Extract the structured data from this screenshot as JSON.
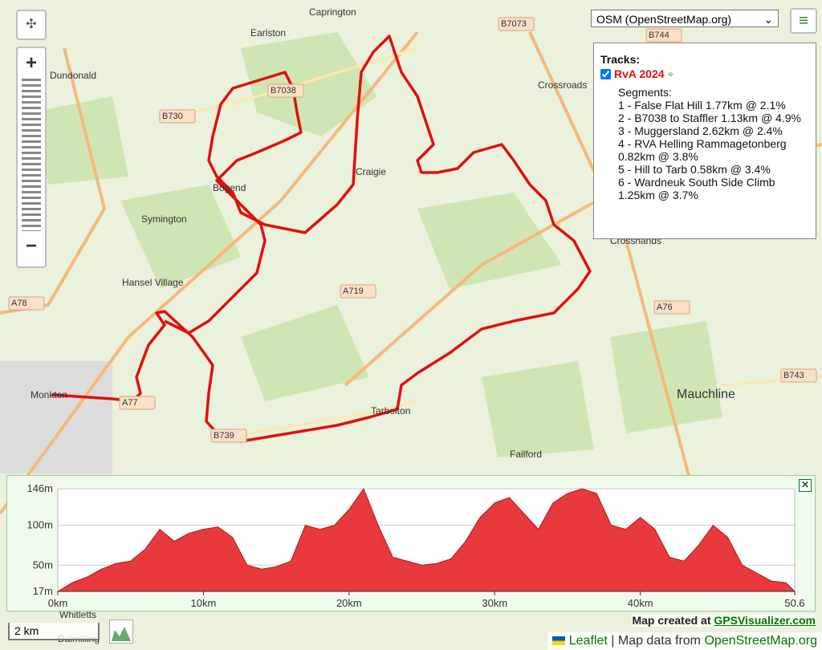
{
  "map": {
    "places": [
      "Caprington",
      "Earlston",
      "Dundonald",
      "B7073",
      "B744",
      "B730",
      "B7038",
      "Crossroads",
      "Craigie",
      "Bogend",
      "Symington",
      "Hansel Village",
      "A78",
      "A719",
      "A76",
      "Crosshands",
      "Mauchline",
      "B743",
      "Monkton",
      "A77",
      "Tarbolton",
      "B739",
      "Failford",
      "Whitletts",
      "Dalmilling"
    ]
  },
  "controls": {
    "layer": "OSM (OpenStreetMap.org)",
    "zoom_in": "+",
    "zoom_out": "−",
    "scale": "2 km"
  },
  "tracks": {
    "title": "Tracks:",
    "track": "RvA 2024",
    "segments_title": "Segments:",
    "segments": [
      "1 - False Flat Hill 1.77km @ 2.1%",
      "2 - B7038 to Staffler 1.13km @ 4.9%",
      "3 - Muggersland 2.62km @ 2.4%",
      "4 - RVA Helling Rammagetonberg 0.82km @ 3.8%",
      "5 - Hill to Tarb 0.58km @ 3.4%",
      "6 - Wardneuk South Side Climb 1.25km @ 3.7%"
    ]
  },
  "footer": {
    "created": "Map created at",
    "created_link": "GPSVisualizer.com",
    "leaflet": "Leaflet",
    "data_from": "| Map data from",
    "data_link": "OpenStreetMap.org"
  },
  "chart_data": {
    "type": "area",
    "color": "#e8393c",
    "x": [
      0,
      1,
      2,
      3,
      4,
      5,
      6,
      7,
      8,
      9,
      10,
      11,
      12,
      13,
      14,
      15,
      16,
      17,
      18,
      19,
      20,
      21,
      22,
      23,
      24,
      25,
      26,
      27,
      28,
      29,
      30,
      31,
      32,
      33,
      34,
      35,
      36,
      37,
      38,
      39,
      40,
      41,
      42,
      43,
      44,
      45,
      46,
      47,
      48,
      49,
      50,
      50.6
    ],
    "values": [
      17,
      28,
      35,
      45,
      52,
      55,
      70,
      95,
      80,
      90,
      95,
      98,
      85,
      50,
      45,
      48,
      55,
      100,
      95,
      100,
      120,
      146,
      100,
      60,
      55,
      50,
      52,
      58,
      80,
      110,
      128,
      135,
      115,
      95,
      128,
      140,
      146,
      140,
      100,
      95,
      110,
      95,
      60,
      55,
      75,
      100,
      85,
      50,
      40,
      30,
      28,
      17
    ],
    "xlim": [
      0,
      50.6
    ],
    "ylim": [
      17,
      146
    ],
    "xticks": [
      {
        "value": 0,
        "label": "0km"
      },
      {
        "value": 10,
        "label": "10km"
      },
      {
        "value": 20,
        "label": "20km"
      },
      {
        "value": 30,
        "label": "30km"
      },
      {
        "value": 40,
        "label": "40km"
      },
      {
        "value": 50.6,
        "label": "50.6"
      }
    ],
    "yticks": [
      {
        "value": 17,
        "label": "17m"
      },
      {
        "value": 50,
        "label": "50m"
      },
      {
        "value": 100,
        "label": "100m"
      },
      {
        "value": 146,
        "label": "146m"
      }
    ],
    "grid": true
  }
}
